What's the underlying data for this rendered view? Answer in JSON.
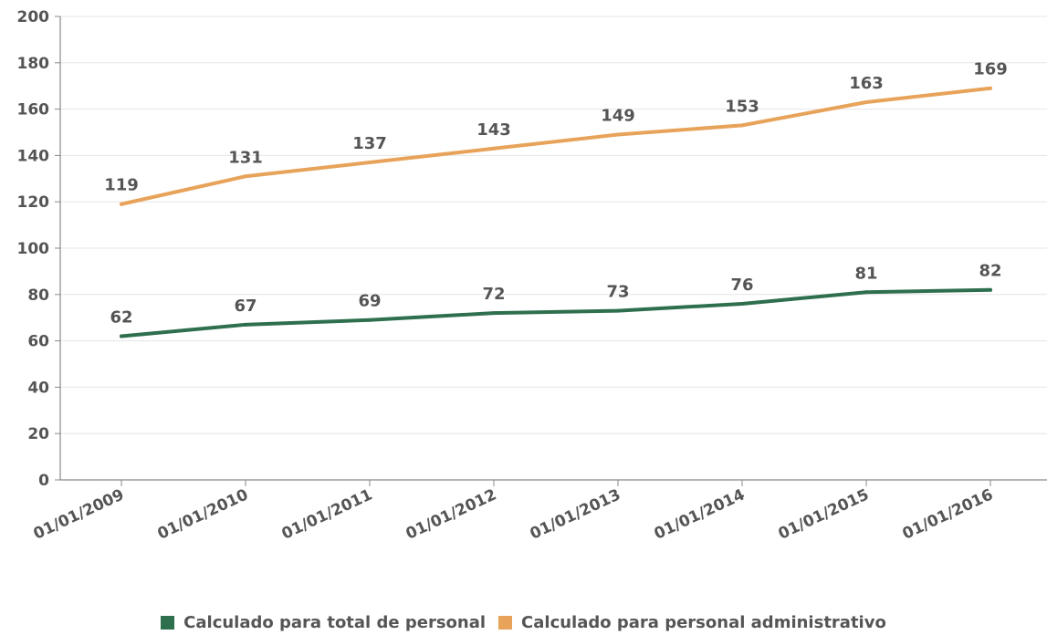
{
  "chart_data": {
    "type": "line",
    "categories": [
      "01/01/2009",
      "01/01/2010",
      "01/01/2011",
      "01/01/2012",
      "01/01/2013",
      "01/01/2014",
      "01/01/2015",
      "01/01/2016"
    ],
    "series": [
      {
        "name": "Calculado para total de personal",
        "color": "#2e6f4e",
        "values": [
          62,
          67,
          69,
          72,
          73,
          76,
          81,
          82
        ]
      },
      {
        "name": "Calculado para personal administrativo",
        "color": "#e8a35a",
        "values": [
          119,
          131,
          137,
          143,
          149,
          153,
          163,
          169
        ]
      }
    ],
    "ylim": [
      0,
      200
    ],
    "yticks": [
      0,
      20,
      40,
      60,
      80,
      100,
      120,
      140,
      160,
      180,
      200
    ],
    "grid": true,
    "legend_position": "bottom",
    "data_labels": true
  }
}
